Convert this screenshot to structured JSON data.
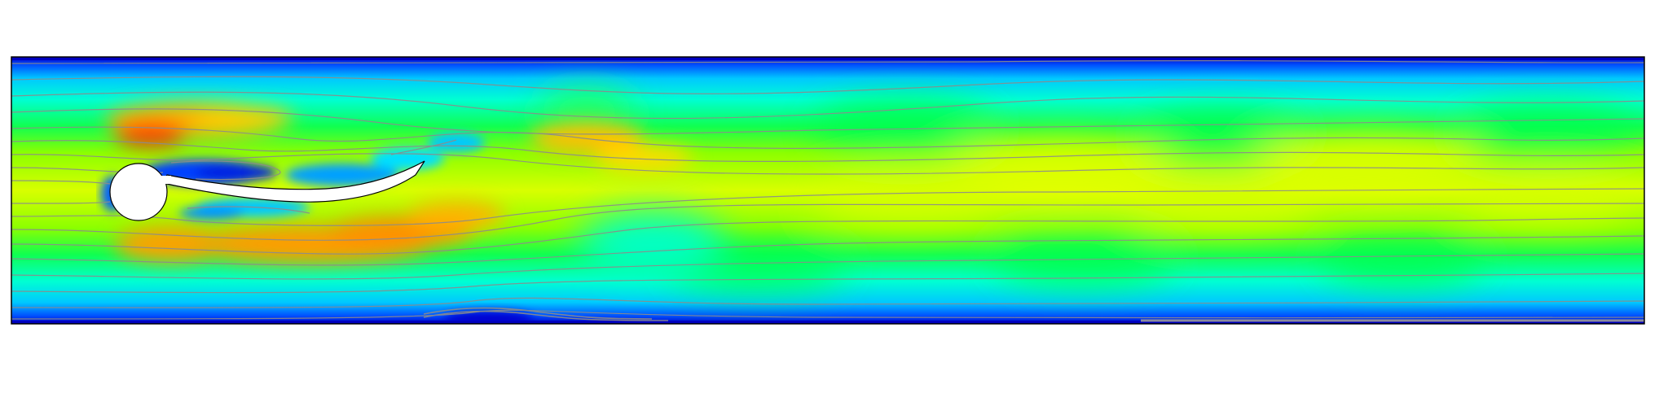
{
  "figure": {
    "kind": "flow-visualization",
    "description_visible_text": "",
    "colormap": [
      "#0000c8",
      "#0050ff",
      "#00b4ff",
      "#00ffff",
      "#00ff64",
      "#64ff00",
      "#c8ff00",
      "#ffff00",
      "#ffc800",
      "#ff9600",
      "#ff5000",
      "#e00000"
    ],
    "background_color": "#ffffff",
    "frame_color": "#000000",
    "streamline_color": "#8c8c8c",
    "obstacle_color": "#ffffff",
    "has_colorbar": false,
    "has_axes": false
  }
}
